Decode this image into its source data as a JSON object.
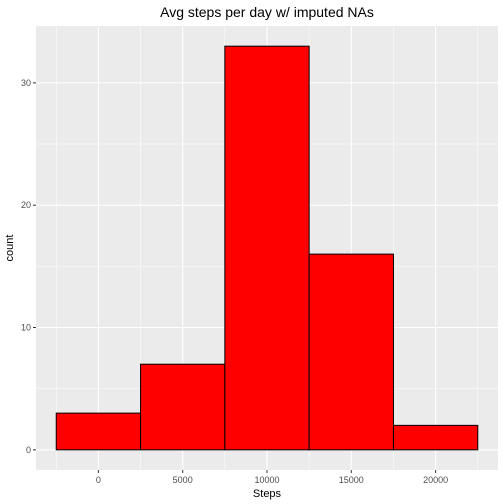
{
  "chart_data": {
    "type": "bar",
    "title": "Avg steps per day w/ imputed NAs",
    "xlabel": "Steps",
    "ylabel": "count",
    "bins": [
      {
        "start": -2500,
        "end": 2500,
        "count": 3
      },
      {
        "start": 2500,
        "end": 7500,
        "count": 7
      },
      {
        "start": 7500,
        "end": 12500,
        "count": 33
      },
      {
        "start": 12500,
        "end": 17500,
        "count": 16
      },
      {
        "start": 17500,
        "end": 22500,
        "count": 2
      }
    ],
    "x_ticks": [
      "0",
      "5000",
      "10000",
      "15000",
      "20000"
    ],
    "y_ticks": [
      "0",
      "10",
      "20",
      "30"
    ],
    "xlim": [
      -3700,
      23700
    ],
    "ylim": [
      -1.65,
      34.65
    ],
    "grid": true,
    "colors": {
      "bar_fill": "#ff0000",
      "bar_stroke": "#000000",
      "panel_bg": "#ebebeb",
      "grid": "#ffffff"
    }
  }
}
